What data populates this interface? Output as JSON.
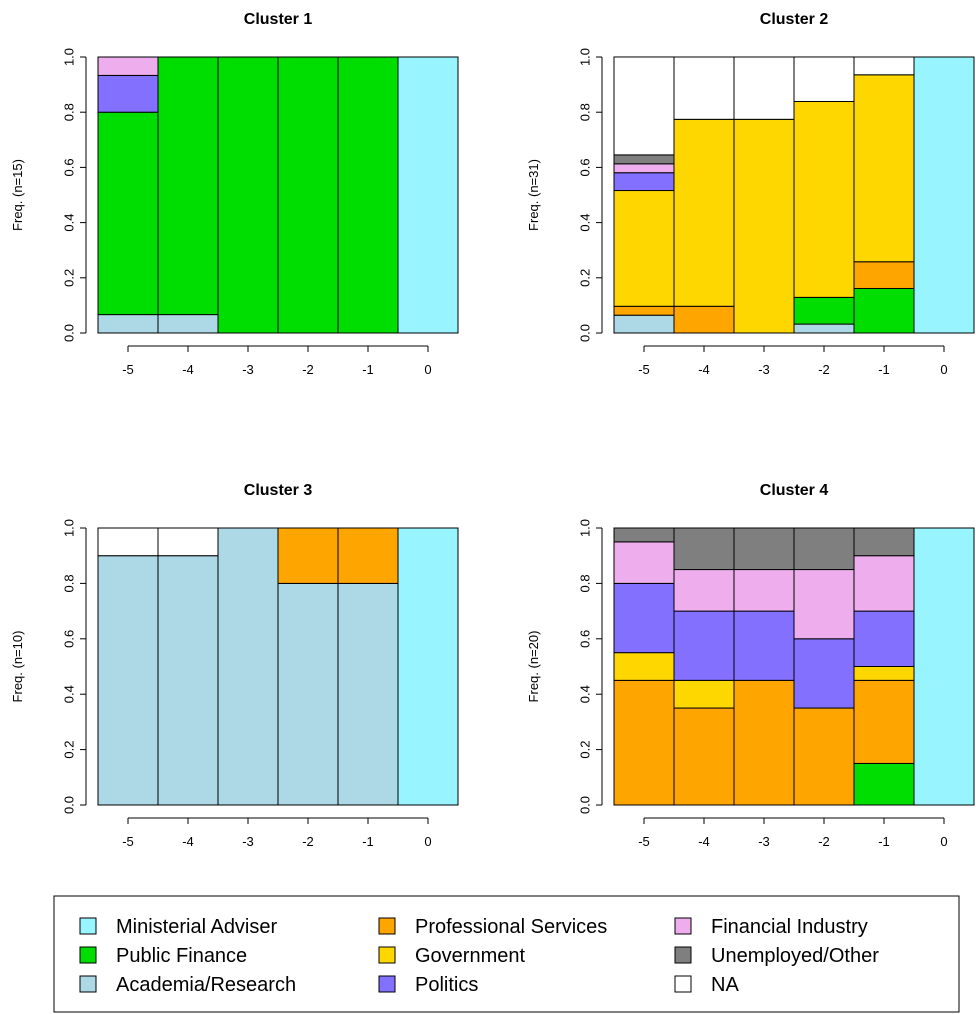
{
  "chart_data": [
    {
      "type": "bar",
      "stacked": true,
      "title": "Cluster 1",
      "ylabel": "Freq. (n=15)",
      "xlabel": "",
      "categories": [
        "-5",
        "-4",
        "-3",
        "-2",
        "-1",
        "0"
      ],
      "ylim": [
        0,
        1
      ],
      "yticks": [
        "0.0",
        "0.2",
        "0.4",
        "0.6",
        "0.8",
        "1.0"
      ],
      "series": [
        {
          "name": "Academia/Research",
          "values": [
            0.0667,
            0.0667,
            0,
            0,
            0,
            0
          ]
        },
        {
          "name": "Public Finance",
          "values": [
            0.7333,
            0.9333,
            1.0,
            1.0,
            1.0,
            0
          ]
        },
        {
          "name": "Politics",
          "values": [
            0.1333,
            0,
            0,
            0,
            0,
            0
          ]
        },
        {
          "name": "Financial Industry",
          "values": [
            0.0667,
            0,
            0,
            0,
            0,
            0
          ]
        },
        {
          "name": "Ministerial Adviser",
          "values": [
            0,
            0,
            0,
            0,
            0,
            1.0
          ]
        }
      ]
    },
    {
      "type": "bar",
      "stacked": true,
      "title": "Cluster 2",
      "ylabel": "Freq. (n=31)",
      "xlabel": "",
      "categories": [
        "-5",
        "-4",
        "-3",
        "-2",
        "-1",
        "0"
      ],
      "ylim": [
        0,
        1
      ],
      "yticks": [
        "0.0",
        "0.2",
        "0.4",
        "0.6",
        "0.8",
        "1.0"
      ],
      "series": [
        {
          "name": "Academia/Research",
          "values": [
            0.0645,
            0,
            0,
            0.0323,
            0,
            0
          ]
        },
        {
          "name": "Public Finance",
          "values": [
            0,
            0,
            0,
            0.0968,
            0.1613,
            0
          ]
        },
        {
          "name": "Professional Services",
          "values": [
            0.0323,
            0.0968,
            0,
            0,
            0.0968,
            0
          ]
        },
        {
          "name": "Government",
          "values": [
            0.4194,
            0.6774,
            0.7742,
            0.7097,
            0.6774,
            0
          ]
        },
        {
          "name": "Politics",
          "values": [
            0.0645,
            0,
            0,
            0,
            0,
            0
          ]
        },
        {
          "name": "Financial Industry",
          "values": [
            0.0323,
            0,
            0,
            0,
            0,
            0
          ]
        },
        {
          "name": "Unemployed/Other",
          "values": [
            0.0323,
            0,
            0,
            0,
            0,
            0
          ]
        },
        {
          "name": "NA",
          "values": [
            0.3548,
            0.2258,
            0.2258,
            0.1613,
            0.0645,
            0
          ]
        },
        {
          "name": "Ministerial Adviser",
          "values": [
            0,
            0,
            0,
            0,
            0,
            1.0
          ]
        }
      ]
    },
    {
      "type": "bar",
      "stacked": true,
      "title": "Cluster 3",
      "ylabel": "Freq. (n=10)",
      "xlabel": "",
      "categories": [
        "-5",
        "-4",
        "-3",
        "-2",
        "-1",
        "0"
      ],
      "ylim": [
        0,
        1
      ],
      "yticks": [
        "0.0",
        "0.2",
        "0.4",
        "0.6",
        "0.8",
        "1.0"
      ],
      "series": [
        {
          "name": "Academia/Research",
          "values": [
            0.9,
            0.9,
            1.0,
            0.8,
            0.8,
            0
          ]
        },
        {
          "name": "Professional Services",
          "values": [
            0,
            0,
            0,
            0.2,
            0.2,
            0
          ]
        },
        {
          "name": "NA",
          "values": [
            0.1,
            0.1,
            0,
            0,
            0,
            0
          ]
        },
        {
          "name": "Ministerial Adviser",
          "values": [
            0,
            0,
            0,
            0,
            0,
            1.0
          ]
        }
      ]
    },
    {
      "type": "bar",
      "stacked": true,
      "title": "Cluster 4",
      "ylabel": "Freq. (n=20)",
      "xlabel": "",
      "categories": [
        "-5",
        "-4",
        "-3",
        "-2",
        "-1",
        "0"
      ],
      "ylim": [
        0,
        1
      ],
      "yticks": [
        "0.0",
        "0.2",
        "0.4",
        "0.6",
        "0.8",
        "1.0"
      ],
      "series": [
        {
          "name": "Public Finance",
          "values": [
            0,
            0,
            0,
            0,
            0.15,
            0
          ]
        },
        {
          "name": "Professional Services",
          "values": [
            0.45,
            0.35,
            0.45,
            0.35,
            0.3,
            0
          ]
        },
        {
          "name": "Government",
          "values": [
            0.1,
            0.1,
            0,
            0,
            0.05,
            0
          ]
        },
        {
          "name": "Politics",
          "values": [
            0.25,
            0.25,
            0.25,
            0.25,
            0.2,
            0
          ]
        },
        {
          "name": "Financial Industry",
          "values": [
            0.15,
            0.15,
            0.15,
            0.25,
            0.2,
            0
          ]
        },
        {
          "name": "Unemployed/Other",
          "values": [
            0.05,
            0.15,
            0.15,
            0.15,
            0.1,
            0
          ]
        },
        {
          "name": "Ministerial Adviser",
          "values": [
            0,
            0,
            0,
            0,
            0,
            1.0
          ]
        }
      ]
    }
  ],
  "legend": {
    "placement": "bottom",
    "items": [
      {
        "name": "Ministerial Adviser",
        "color": "#98F5FF"
      },
      {
        "name": "Public Finance",
        "color": "#00DD00"
      },
      {
        "name": "Academia/Research",
        "color": "#ADD8E6"
      },
      {
        "name": "Professional Services",
        "color": "#FFA500"
      },
      {
        "name": "Government",
        "color": "#FFD700"
      },
      {
        "name": "Politics",
        "color": "#8470FF"
      },
      {
        "name": "Financial Industry",
        "color": "#EEAEEE"
      },
      {
        "name": "Unemployed/Other",
        "color": "#7F7F7F"
      },
      {
        "name": "NA",
        "color": "#FFFFFF"
      }
    ]
  }
}
